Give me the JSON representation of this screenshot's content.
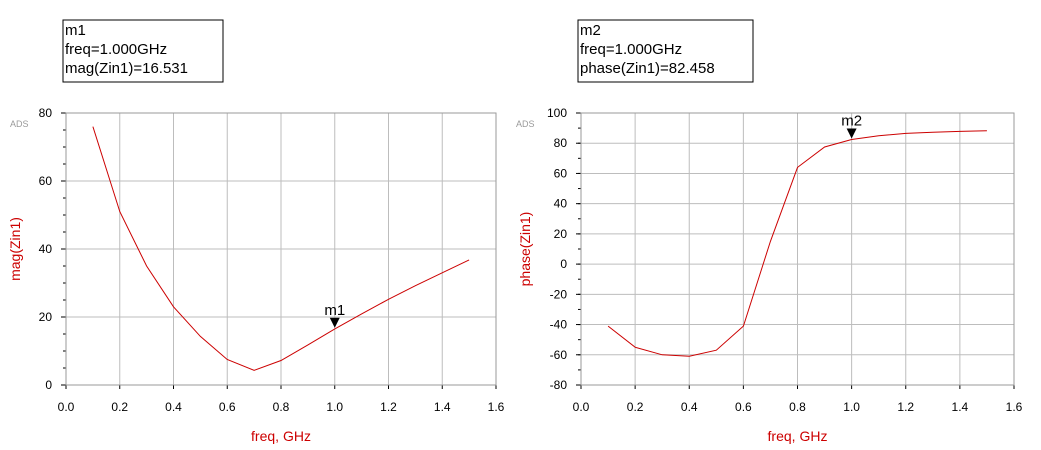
{
  "brand_color": "#cc0000",
  "chart_data": [
    {
      "type": "line",
      "ads_label": "ADS",
      "xlabel": "freq, GHz",
      "ylabel": "mag(Zin1)",
      "xlim": [
        0.0,
        1.6
      ],
      "ylim": [
        0,
        80
      ],
      "xticks": [
        "0.0",
        "0.2",
        "0.4",
        "0.6",
        "0.8",
        "1.0",
        "1.2",
        "1.4",
        "1.6"
      ],
      "yticks": [
        "0",
        "20",
        "40",
        "60",
        "80"
      ],
      "ytick_values": [
        0,
        20,
        40,
        60,
        80
      ],
      "minor_y_step": 5,
      "grid": true,
      "series": [
        {
          "color": "#cc0000",
          "x": [
            0.1,
            0.2,
            0.3,
            0.4,
            0.5,
            0.6,
            0.7,
            0.8,
            0.9,
            1.0,
            1.1,
            1.2,
            1.3,
            1.4,
            1.5
          ],
          "y": [
            76,
            51,
            35,
            23,
            14.3,
            7.5,
            4.3,
            7.2,
            11.8,
            16.5,
            20.9,
            25.2,
            29.2,
            33.0,
            36.8
          ]
        }
      ],
      "marker": {
        "name": "m1",
        "x": 1.0,
        "y": 16.531,
        "lines": [
          "m1",
          "freq=1.000GHz",
          "mag(Zin1)=16.531"
        ]
      }
    },
    {
      "type": "line",
      "ads_label": "ADS",
      "xlabel": "freq, GHz",
      "ylabel": "phase(Zin1)",
      "xlim": [
        0.0,
        1.6
      ],
      "ylim": [
        -80,
        100
      ],
      "xticks": [
        "0.0",
        "0.2",
        "0.4",
        "0.6",
        "0.8",
        "1.0",
        "1.2",
        "1.4",
        "1.6"
      ],
      "yticks": [
        "-80",
        "-60",
        "-40",
        "-20",
        "0",
        "20",
        "40",
        "60",
        "80",
        "100"
      ],
      "ytick_values": [
        -80,
        -60,
        -40,
        -20,
        0,
        20,
        40,
        60,
        80,
        100
      ],
      "minor_y_step": 10,
      "grid": true,
      "series": [
        {
          "color": "#cc0000",
          "x": [
            0.1,
            0.2,
            0.3,
            0.4,
            0.5,
            0.6,
            0.7,
            0.8,
            0.9,
            1.0,
            1.1,
            1.2,
            1.3,
            1.4,
            1.5
          ],
          "y": [
            -41,
            -55,
            -60,
            -61,
            -57,
            -41,
            15,
            64,
            77.5,
            82.458,
            85,
            86.5,
            87.3,
            87.8,
            88.2
          ]
        }
      ],
      "marker": {
        "name": "m2",
        "x": 1.0,
        "y": 82.458,
        "lines": [
          "m2",
          "freq=1.000GHz",
          "phase(Zin1)=82.458"
        ]
      }
    }
  ]
}
